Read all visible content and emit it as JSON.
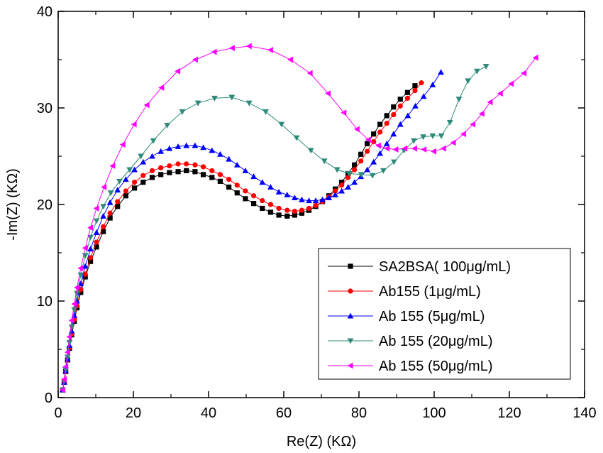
{
  "chart_data": {
    "type": "scatter",
    "xlabel": "Re(Z) (KΩ)",
    "ylabel": "-Im(Z) (KΩ)",
    "xlim": [
      0,
      140
    ],
    "ylim": [
      0,
      40
    ],
    "xticks": [
      "0",
      "20",
      "40",
      "60",
      "80",
      "100",
      "120",
      "140"
    ],
    "yticks": [
      "0",
      "10",
      "20",
      "30",
      "40"
    ],
    "grid": false,
    "legend_position": "bottom-right",
    "series": [
      {
        "name": "SA2BSA( 100μg/mL)",
        "color": "#000000",
        "marker": "square",
        "x": [
          1.2,
          1.6,
          2.0,
          2.5,
          3.0,
          3.6,
          4.3,
          5.0,
          6.0,
          7.2,
          8.6,
          10.2,
          12.0,
          13.8,
          15.8,
          18.0,
          20.3,
          22.6,
          25.0,
          27.3,
          29.6,
          31.9,
          34.1,
          36.4,
          38.6,
          40.9,
          43.1,
          45.4,
          47.6,
          49.8,
          52.0,
          54.3,
          56.5,
          58.7,
          60.9,
          62.9,
          64.8,
          66.7,
          68.5,
          70.3,
          72.0,
          73.7,
          75.4,
          77.1,
          78.8,
          80.5,
          82.2,
          83.9,
          85.6,
          87.4,
          89.2,
          91.0,
          92.9,
          94.9
        ],
        "y": [
          0.8,
          1.6,
          2.7,
          3.9,
          5.1,
          6.5,
          7.9,
          9.3,
          10.9,
          12.5,
          14.1,
          15.6,
          17.2,
          18.6,
          19.8,
          20.9,
          21.7,
          22.3,
          22.8,
          23.1,
          23.3,
          23.4,
          23.5,
          23.4,
          23.1,
          22.8,
          22.4,
          21.8,
          21.2,
          20.6,
          20.1,
          19.6,
          19.2,
          18.9,
          18.8,
          18.9,
          19.1,
          19.4,
          19.8,
          20.3,
          20.9,
          21.6,
          22.3,
          23.2,
          24.1,
          25.2,
          26.3,
          27.3,
          28.3,
          29.2,
          30.1,
          30.9,
          31.6,
          32.3
        ]
      },
      {
        "name": "Ab155 (1μg/mL)",
        "color": "#ff0000",
        "marker": "circle",
        "x": [
          1.2,
          1.6,
          2.0,
          2.5,
          3.0,
          3.6,
          4.3,
          5.0,
          6.0,
          7.2,
          8.6,
          10.2,
          12.0,
          13.8,
          15.8,
          18.0,
          20.3,
          22.6,
          25.0,
          27.3,
          29.6,
          31.9,
          34.1,
          36.4,
          38.6,
          40.9,
          43.1,
          45.4,
          47.6,
          49.8,
          52.0,
          54.3,
          56.5,
          58.7,
          60.9,
          62.9,
          64.8,
          66.7,
          68.5,
          70.3,
          72.0,
          73.7,
          75.4,
          77.1,
          78.8,
          80.5,
          82.2,
          83.9,
          85.6,
          87.4,
          89.2,
          91.0,
          92.9,
          94.9,
          96.6
        ],
        "y": [
          0.8,
          1.6,
          2.7,
          3.9,
          5.2,
          6.6,
          8.1,
          9.5,
          11.2,
          12.8,
          14.5,
          16.1,
          17.7,
          19.1,
          20.3,
          21.4,
          22.3,
          23.0,
          23.5,
          23.8,
          24.0,
          24.2,
          24.2,
          24.1,
          23.9,
          23.5,
          23.1,
          22.6,
          22.0,
          21.4,
          20.9,
          20.4,
          20.0,
          19.6,
          19.4,
          19.3,
          19.4,
          19.6,
          19.9,
          20.3,
          20.8,
          21.4,
          22.0,
          22.8,
          23.6,
          24.5,
          25.5,
          26.5,
          27.5,
          28.4,
          29.3,
          30.2,
          31.0,
          31.8,
          32.6
        ]
      },
      {
        "name": "Ab 155 (5μg/mL)",
        "color": "#0000ff",
        "marker": "triangle-up",
        "x": [
          1.2,
          1.6,
          2.0,
          2.5,
          3.0,
          3.6,
          4.3,
          5.0,
          6.0,
          7.2,
          8.6,
          10.2,
          12.0,
          13.8,
          15.8,
          18.0,
          20.3,
          22.6,
          25.0,
          27.3,
          29.6,
          31.9,
          34.1,
          36.4,
          38.6,
          40.9,
          43.1,
          45.4,
          47.6,
          49.8,
          52.0,
          54.3,
          56.5,
          58.7,
          60.9,
          62.9,
          64.8,
          66.7,
          68.5,
          70.3,
          72.0,
          73.7,
          75.4,
          77.1,
          78.8,
          80.5,
          82.2,
          83.9,
          85.6,
          87.4,
          89.2,
          91.0,
          93.0,
          95.0,
          97.2,
          99.6,
          101.8
        ],
        "y": [
          0.8,
          1.6,
          2.8,
          4.0,
          5.4,
          6.9,
          8.5,
          10.0,
          11.8,
          13.6,
          15.4,
          17.1,
          18.8,
          20.2,
          21.5,
          22.6,
          23.6,
          24.4,
          25.0,
          25.5,
          25.8,
          26.0,
          26.1,
          26.1,
          25.9,
          25.6,
          25.2,
          24.7,
          24.1,
          23.5,
          22.9,
          22.3,
          21.8,
          21.3,
          21.0,
          20.7,
          20.5,
          20.4,
          20.4,
          20.5,
          20.7,
          21.0,
          21.4,
          21.8,
          22.3,
          22.9,
          23.6,
          24.4,
          25.3,
          26.3,
          27.3,
          28.3,
          29.2,
          30.2,
          31.2,
          32.4,
          33.7
        ]
      },
      {
        "name": "Ab 155 (20μg/mL)",
        "color": "#2e8b7a",
        "marker": "triangle-down",
        "x": [
          1.2,
          1.6,
          2.0,
          2.5,
          3.0,
          3.6,
          4.3,
          5.0,
          6.0,
          7.2,
          8.6,
          10.2,
          12.0,
          14.0,
          16.3,
          19.0,
          22.0,
          25.3,
          29.0,
          33.0,
          37.2,
          41.6,
          46.2,
          50.8,
          55.2,
          59.4,
          63.4,
          67.2,
          70.8,
          74.2,
          77.4,
          80.6,
          83.6,
          86.5,
          89.3,
          92.0,
          94.6,
          97.1,
          99.6,
          101.9,
          104.2,
          106.6,
          109.0,
          111.4,
          113.8
        ],
        "y": [
          0.8,
          1.7,
          2.9,
          4.2,
          5.7,
          7.3,
          9.1,
          10.8,
          12.7,
          14.7,
          16.6,
          18.3,
          19.8,
          21.2,
          22.4,
          23.6,
          25.0,
          26.6,
          28.2,
          29.6,
          30.5,
          31.0,
          31.1,
          30.5,
          29.6,
          28.3,
          26.9,
          25.6,
          24.5,
          23.6,
          23.2,
          23.1,
          23.0,
          23.5,
          24.4,
          25.6,
          26.6,
          27.0,
          27.1,
          27.1,
          28.5,
          30.9,
          32.8,
          33.8,
          34.3
        ]
      },
      {
        "name": "Ab 155 (50μg/mL)",
        "color": "#ff00ff",
        "marker": "triangle-left",
        "x": [
          1.2,
          1.6,
          2.0,
          2.5,
          3.0,
          3.6,
          4.3,
          5.0,
          6.0,
          7.2,
          8.6,
          10.2,
          12.2,
          14.5,
          17.2,
          20.2,
          23.6,
          27.5,
          31.8,
          36.5,
          41.5,
          46.3,
          50.8,
          56.5,
          61.8,
          67.0,
          71.8,
          76.0,
          79.5,
          82.5,
          85.2,
          87.5,
          89.8,
          92.2,
          94.8,
          97.3,
          99.9,
          102.5,
          105.1,
          107.8,
          110.3,
          112.7,
          114.9,
          117.6,
          120.5,
          123.9,
          127.0
        ],
        "y": [
          0.8,
          1.9,
          3.2,
          4.7,
          6.3,
          8.0,
          9.7,
          11.4,
          13.4,
          15.5,
          17.6,
          19.6,
          21.8,
          24.0,
          26.2,
          28.3,
          30.3,
          32.1,
          33.8,
          35.0,
          35.8,
          36.2,
          36.4,
          36.0,
          35.0,
          33.6,
          31.5,
          29.5,
          27.8,
          26.7,
          26.1,
          25.8,
          25.7,
          25.8,
          25.8,
          25.7,
          25.5,
          25.8,
          26.4,
          27.3,
          28.3,
          29.4,
          30.6,
          31.5,
          32.5,
          33.6,
          35.2
        ]
      }
    ]
  }
}
